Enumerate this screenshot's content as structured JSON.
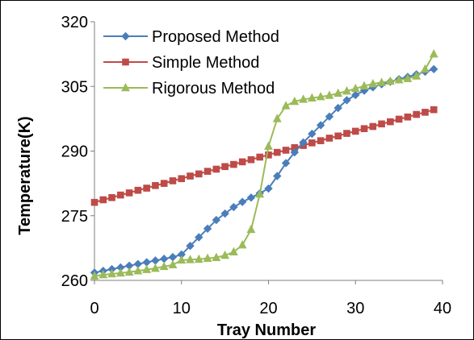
{
  "chart_data": {
    "type": "line",
    "title": "",
    "xlabel": "Tray Number",
    "ylabel": "Temperature(K)",
    "xlim": [
      0,
      40
    ],
    "ylim": [
      260,
      320
    ],
    "x_ticks": [
      "0",
      "10",
      "20",
      "30",
      "40"
    ],
    "y_ticks": [
      "260",
      "275",
      "290",
      "305",
      "320"
    ],
    "grid": false,
    "legend_position": "top-left",
    "x": [
      0,
      1,
      2,
      3,
      4,
      5,
      6,
      7,
      8,
      9,
      10,
      11,
      12,
      13,
      14,
      15,
      16,
      17,
      18,
      19,
      20,
      21,
      22,
      23,
      24,
      25,
      26,
      27,
      28,
      29,
      30,
      31,
      32,
      33,
      34,
      35,
      36,
      37,
      38,
      39
    ],
    "series": [
      {
        "name": "Proposed Method",
        "color": "#4a7ebb",
        "marker": "diamond",
        "values": [
          261.8,
          262.2,
          262.6,
          263.0,
          263.4,
          263.8,
          264.2,
          264.6,
          265.0,
          265.4,
          266.0,
          268.0,
          270.0,
          272.0,
          274.0,
          275.5,
          277.0,
          278.2,
          279.2,
          280.2,
          281.3,
          284.2,
          287.2,
          289.7,
          292.0,
          294.0,
          296.0,
          298.0,
          300.0,
          301.8,
          303.0,
          304.0,
          304.8,
          305.5,
          306.1,
          306.7,
          307.2,
          307.8,
          308.4,
          309.0
        ]
      },
      {
        "name": "Simple Method",
        "color": "#be4b48",
        "marker": "square",
        "values": [
          278.1,
          278.7,
          279.2,
          279.8,
          280.3,
          280.9,
          281.4,
          282.0,
          282.5,
          283.1,
          283.6,
          284.2,
          284.7,
          285.3,
          285.8,
          286.4,
          286.9,
          287.5,
          288.0,
          288.6,
          289.1,
          289.7,
          290.2,
          290.8,
          291.3,
          291.9,
          292.4,
          293.0,
          293.5,
          294.1,
          294.6,
          295.2,
          295.7,
          296.3,
          296.8,
          297.4,
          297.9,
          298.5,
          299.0,
          299.6
        ]
      },
      {
        "name": "Rigorous Method",
        "color": "#9bbb59",
        "marker": "triangle",
        "values": [
          261.0,
          261.3,
          261.5,
          261.7,
          261.9,
          262.2,
          262.5,
          262.8,
          263.2,
          263.6,
          264.7,
          264.8,
          264.9,
          265.1,
          265.3,
          265.8,
          266.6,
          268.2,
          271.8,
          280.0,
          291.1,
          297.5,
          300.5,
          301.5,
          302.0,
          302.3,
          302.6,
          302.9,
          303.4,
          303.9,
          304.5,
          305.1,
          305.6,
          305.9,
          306.2,
          306.5,
          306.8,
          307.4,
          309.0,
          312.5
        ]
      }
    ]
  }
}
